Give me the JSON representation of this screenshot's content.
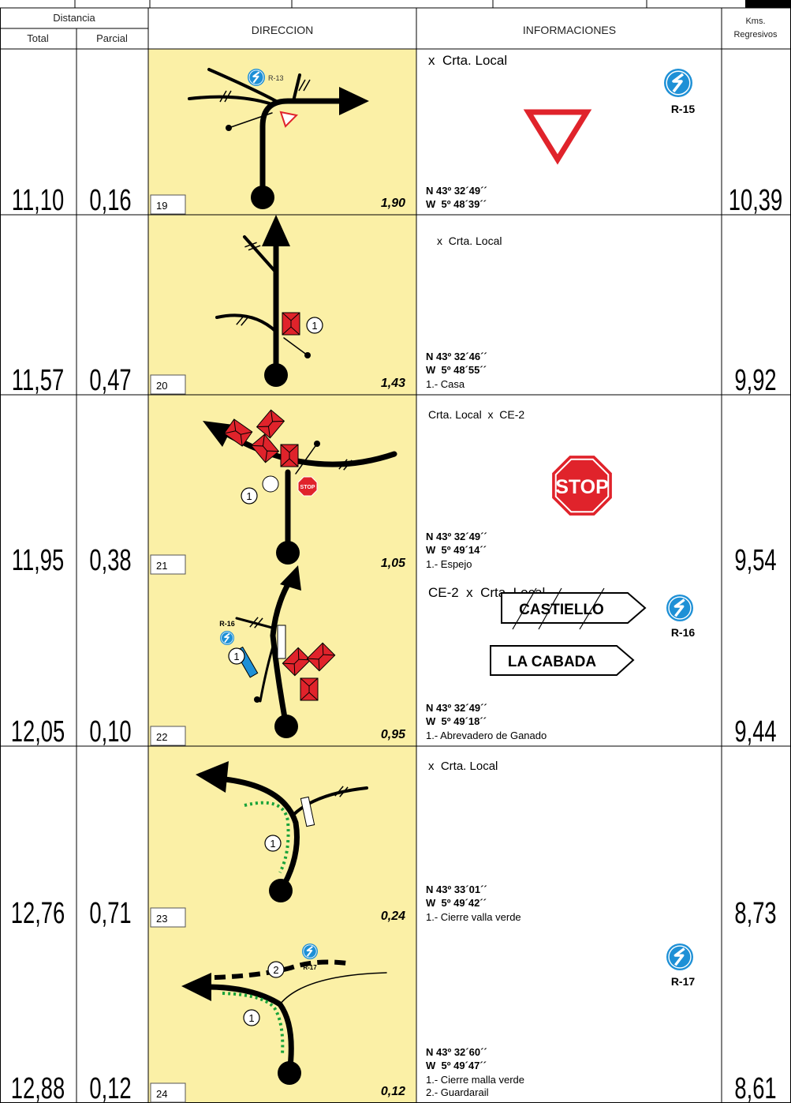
{
  "header": {
    "distancia": "Distancia",
    "total": "Total",
    "parcial": "Parcial",
    "direccion": "DIRECCION",
    "informaciones": "INFORMACIONES",
    "kms": "Kms.",
    "regresivos": "Regresivos"
  },
  "entries": [
    {
      "total": "11,10",
      "parcial": "0,16",
      "number": "19",
      "distance": "1,90",
      "kms": "10,39",
      "title": "x  Crta. Local",
      "lat": "N 43º 32´49´´",
      "lon": "W  5º 48´39´´",
      "notes": [],
      "sign_code": "R-15",
      "diagram_labels": [
        "R-13"
      ]
    },
    {
      "total": "11,57",
      "parcial": "0,47",
      "number": "20",
      "distance": "1,43",
      "kms": "9,92",
      "title": "x  Crta. Local",
      "lat": "N 43º 32´46´´",
      "lon": "W  5º 48´55´´",
      "notes": [
        "1.- Casa"
      ],
      "diagram_labels": [
        "1"
      ]
    },
    {
      "total": "11,95",
      "parcial": "0,38",
      "number": "21",
      "distance": "1,05",
      "kms": "9,54",
      "title": "Crta. Local  x  CE-2",
      "lat": "N 43º 32´49´´",
      "lon": "W  5º 49´14´´",
      "notes": [
        "1.- Espejo"
      ],
      "sign_text": "STOP",
      "diagram_labels": [
        "1",
        "STOP"
      ]
    },
    {
      "total": "12,05",
      "parcial": "0,10",
      "number": "22",
      "distance": "0,95",
      "kms": "9,44",
      "title": "CE-2  x  Crta. Local",
      "lat": "N 43º 32´49´´",
      "lon": "W  5º 49´18´´",
      "notes": [
        "1.- Abrevadero de Ganado"
      ],
      "sign_code": "R-16",
      "sign_text": "LA CABADA",
      "diagram_labels": [
        "R-16",
        "1"
      ]
    },
    {
      "total": "12,76",
      "parcial": "0,71",
      "number": "23",
      "distance": "0,24",
      "kms": "8,73",
      "title": "x  Crta. Local",
      "lat": "N 43º 33´01´´",
      "lon": "W  5º 49´42´´",
      "notes": [
        "1.- Cierre valla verde"
      ],
      "sign_text": "CASTIELLO",
      "diagram_labels": [
        "1"
      ]
    },
    {
      "total": "12,88",
      "parcial": "0,12",
      "number": "24",
      "distance": "0,12",
      "kms": "8,61",
      "lat": "N 43º 32´60´´",
      "lon": "W  5º 49´47´´",
      "notes": [
        "1.- Cierre malla verde",
        "2.- Guardarail"
      ],
      "sign_code": "R-17",
      "diagram_labels": [
        "2",
        "R-17",
        "1"
      ]
    }
  ]
}
